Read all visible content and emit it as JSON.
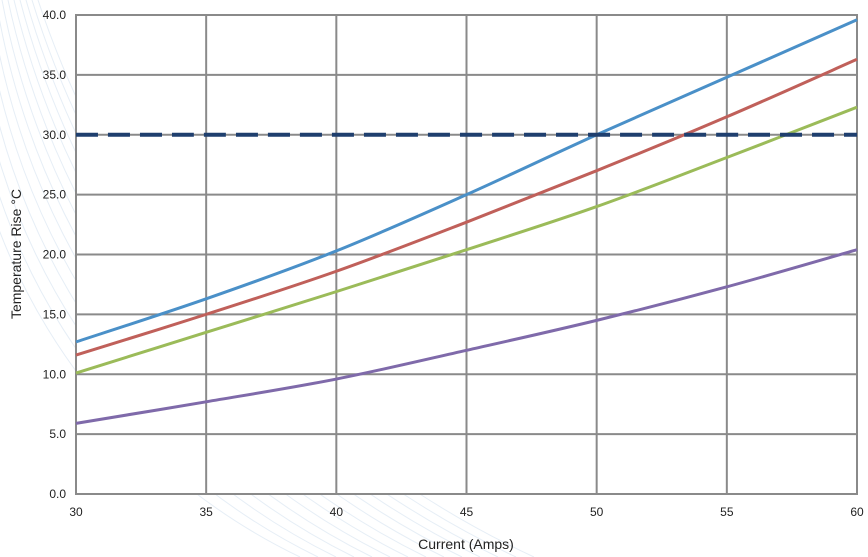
{
  "chart_data": {
    "type": "line",
    "title": "",
    "xlabel": "Current (Amps)",
    "ylabel": "Temperature Rise °C",
    "xlim": [
      30,
      60
    ],
    "ylim": [
      0,
      40
    ],
    "x_ticks": [
      "30",
      "35",
      "40",
      "45",
      "50",
      "55",
      "60"
    ],
    "y_ticks": [
      "0.0",
      "5.0",
      "10.0",
      "15.0",
      "20.0",
      "25.0",
      "30.0",
      "35.0",
      "40.0"
    ],
    "grid": true,
    "legend": "none",
    "series": [
      {
        "color": "#4a90c8",
        "x": [
          30,
          35,
          40,
          45,
          50,
          55,
          60
        ],
        "y": [
          12.7,
          16.3,
          20.3,
          25.0,
          30.0,
          34.8,
          39.6
        ]
      },
      {
        "color": "#c0605a",
        "x": [
          30,
          35,
          40,
          45,
          50,
          55,
          60
        ],
        "y": [
          11.6,
          15.0,
          18.6,
          22.7,
          27.0,
          31.5,
          36.3
        ]
      },
      {
        "color": "#9bbb59",
        "x": [
          30,
          35,
          40,
          45,
          50,
          55,
          60
        ],
        "y": [
          10.1,
          13.5,
          16.9,
          20.4,
          24.0,
          28.1,
          32.3
        ]
      },
      {
        "color": "#7f6aaa",
        "x": [
          30,
          35,
          40,
          45,
          50,
          55,
          60
        ],
        "y": [
          5.9,
          7.7,
          9.6,
          12.0,
          14.5,
          17.3,
          20.4
        ]
      },
      {
        "color": "#1f3f6e",
        "dashed": true,
        "x": [
          30,
          60
        ],
        "y": [
          30.0,
          30.0
        ]
      }
    ]
  }
}
